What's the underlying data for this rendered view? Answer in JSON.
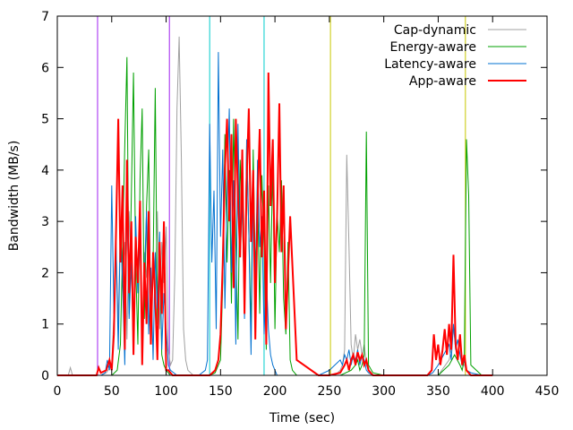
{
  "chart_data": {
    "type": "line",
    "xlabel": "Time (sec)",
    "ylabel": "Bandwidth (MB/s)",
    "xlim": [
      0,
      450
    ],
    "ylim": [
      0,
      7
    ],
    "xticks": [
      0,
      50,
      100,
      150,
      200,
      250,
      300,
      350,
      400,
      450
    ],
    "yticks": [
      0,
      1,
      2,
      3,
      4,
      5,
      6,
      7
    ],
    "grid": false,
    "legend_position": "top-right",
    "vertical_lines": [
      {
        "x": 37,
        "color": "#a020f0"
      },
      {
        "x": 103,
        "color": "#a020f0"
      },
      {
        "x": 140,
        "color": "#00cccc"
      },
      {
        "x": 190,
        "color": "#00cccc"
      },
      {
        "x": 251,
        "color": "#c8c800"
      },
      {
        "x": 375,
        "color": "#c8c800"
      }
    ],
    "series": [
      {
        "name": "Cap-dynamic",
        "color": "#a0a0a0",
        "width": 1,
        "x": [
          0,
          10,
          12,
          14,
          20,
          30,
          40,
          45,
          50,
          52,
          54,
          56,
          58,
          60,
          62,
          64,
          66,
          68,
          70,
          72,
          74,
          76,
          78,
          80,
          82,
          84,
          86,
          88,
          90,
          92,
          94,
          96,
          98,
          100,
          102,
          104,
          106,
          108,
          110,
          112,
          114,
          116,
          118,
          120,
          125,
          130,
          140,
          150,
          200,
          240,
          250,
          255,
          260,
          262,
          264,
          266,
          268,
          270,
          272,
          274,
          276,
          278,
          280,
          282,
          284,
          286,
          290,
          300,
          350,
          360,
          362,
          364,
          366,
          368,
          370,
          372,
          374,
          376,
          380,
          390,
          400
        ],
        "y": [
          0,
          0,
          0.15,
          0,
          0,
          0,
          0,
          0.05,
          0.2,
          1.2,
          2.5,
          1.0,
          3.0,
          1.8,
          2.6,
          0.7,
          3.2,
          2.1,
          0.9,
          2.8,
          1.6,
          3.3,
          0.6,
          2.4,
          1.9,
          3.0,
          0.8,
          2.2,
          1.4,
          3.2,
          0.9,
          2.6,
          1.8,
          2.9,
          0.5,
          0.2,
          0.3,
          2.0,
          5.2,
          6.6,
          4.2,
          0.9,
          0.3,
          0.1,
          0,
          0,
          0,
          0,
          0,
          0,
          0,
          0,
          0.1,
          0.2,
          0.5,
          4.3,
          2.5,
          0.6,
          0.3,
          0.8,
          0.5,
          0.7,
          0.4,
          0.6,
          0.2,
          0.1,
          0,
          0,
          0,
          0.3,
          0.5,
          0.9,
          0.6,
          0.4,
          0.7,
          0.3,
          0.2,
          0.1,
          0,
          0,
          0
        ]
      },
      {
        "name": "Energy-aware",
        "color": "#00a000",
        "width": 1,
        "x": [
          0,
          40,
          50,
          55,
          58,
          60,
          62,
          64,
          66,
          68,
          70,
          72,
          74,
          76,
          78,
          80,
          82,
          84,
          86,
          88,
          90,
          92,
          94,
          96,
          98,
          100,
          104,
          110,
          130,
          140,
          145,
          150,
          152,
          154,
          156,
          158,
          160,
          162,
          164,
          166,
          168,
          170,
          172,
          174,
          176,
          178,
          180,
          182,
          184,
          186,
          188,
          190,
          192,
          194,
          196,
          198,
          200,
          202,
          204,
          206,
          208,
          210,
          212,
          214,
          216,
          220,
          240,
          260,
          270,
          274,
          276,
          278,
          280,
          282,
          284,
          286,
          290,
          300,
          350,
          360,
          365,
          370,
          372,
          374,
          376,
          378,
          380,
          390,
          400
        ],
        "y": [
          0,
          0,
          0,
          0.1,
          0.6,
          2.5,
          4.5,
          6.2,
          1.2,
          3.5,
          5.9,
          2.2,
          0.6,
          3.8,
          5.2,
          1.1,
          3.3,
          4.4,
          0.8,
          2.1,
          5.6,
          1.0,
          2.3,
          0.4,
          0.2,
          0.1,
          0,
          0,
          0,
          0,
          0.05,
          0.3,
          1.8,
          4.7,
          2.2,
          4.0,
          1.4,
          5.0,
          2.6,
          0.7,
          4.2,
          3.1,
          1.5,
          4.5,
          2.8,
          0.9,
          4.4,
          2.0,
          3.6,
          1.2,
          3.9,
          2.5,
          0.5,
          3.7,
          1.8,
          4.2,
          0.9,
          3.2,
          2.4,
          3.8,
          1.5,
          0.8,
          2.6,
          0.3,
          0.1,
          0,
          0,
          0,
          0.1,
          0.2,
          0.3,
          0.1,
          0.2,
          0.4,
          4.75,
          0.2,
          0.05,
          0,
          0,
          0.2,
          0.4,
          0.2,
          0.1,
          0.3,
          4.6,
          3.5,
          0.2,
          0,
          0
        ]
      },
      {
        "name": "Latency-aware",
        "color": "#0070d0",
        "width": 1,
        "x": [
          0,
          40,
          44,
          46,
          48,
          50,
          52,
          54,
          56,
          58,
          60,
          62,
          64,
          66,
          68,
          70,
          72,
          74,
          76,
          78,
          80,
          82,
          84,
          86,
          88,
          90,
          92,
          94,
          96,
          98,
          100,
          102,
          104,
          110,
          130,
          136,
          138,
          140,
          142,
          144,
          146,
          148,
          150,
          152,
          154,
          156,
          158,
          160,
          162,
          164,
          166,
          168,
          170,
          172,
          174,
          176,
          178,
          180,
          182,
          184,
          186,
          188,
          190,
          192,
          194,
          196,
          198,
          200,
          202,
          204,
          210,
          240,
          250,
          255,
          260,
          262,
          264,
          266,
          268,
          270,
          272,
          274,
          276,
          278,
          280,
          282,
          284,
          286,
          290,
          300,
          340,
          345,
          350,
          355,
          360,
          362,
          364,
          366,
          368,
          370,
          372,
          374,
          376,
          380,
          390,
          400
        ],
        "y": [
          0,
          0,
          0.05,
          0.3,
          0.1,
          3.7,
          1.2,
          2.6,
          0.5,
          3.0,
          1.8,
          0.2,
          3.4,
          1.1,
          2.2,
          0.4,
          3.1,
          1.6,
          2.7,
          0.6,
          1.9,
          3.2,
          0.8,
          2.1,
          0.3,
          2.4,
          1.3,
          2.8,
          0.5,
          1.6,
          0.9,
          0.2,
          0.1,
          0,
          0,
          0.1,
          0.3,
          4.9,
          2.2,
          3.6,
          0.9,
          6.3,
          2.7,
          4.4,
          1.3,
          3.5,
          5.2,
          2.0,
          3.8,
          0.6,
          4.9,
          2.3,
          3.4,
          1.1,
          4.6,
          2.8,
          0.4,
          3.9,
          1.7,
          4.2,
          2.5,
          3.1,
          0.8,
          2.0,
          0.9,
          0.4,
          0.2,
          0.1,
          0,
          0,
          0,
          0,
          0.1,
          0.2,
          0.3,
          0.2,
          0.4,
          0.3,
          0.5,
          0.2,
          0.4,
          0.3,
          0.5,
          0.2,
          0.4,
          0.3,
          0.1,
          0.05,
          0,
          0,
          0,
          0.05,
          0.2,
          0.4,
          0.6,
          0.3,
          1.0,
          0.5,
          0.7,
          0.4,
          0.2,
          0.3,
          0.1,
          0.05,
          0,
          0
        ]
      },
      {
        "name": "App-aware",
        "color": "#ff0000",
        "width": 2,
        "x": [
          0,
          30,
          36,
          38,
          40,
          45,
          48,
          50,
          52,
          54,
          56,
          58,
          60,
          62,
          64,
          66,
          68,
          70,
          72,
          74,
          76,
          78,
          80,
          82,
          84,
          86,
          88,
          90,
          92,
          94,
          96,
          98,
          100,
          102,
          104,
          106,
          110,
          130,
          140,
          145,
          148,
          150,
          152,
          154,
          156,
          158,
          160,
          162,
          164,
          166,
          168,
          170,
          172,
          174,
          176,
          178,
          180,
          182,
          184,
          186,
          188,
          190,
          192,
          194,
          196,
          198,
          200,
          202,
          204,
          206,
          208,
          210,
          214,
          220,
          240,
          250,
          260,
          264,
          266,
          268,
          270,
          272,
          274,
          276,
          278,
          280,
          282,
          284,
          286,
          290,
          300,
          340,
          344,
          346,
          348,
          350,
          352,
          354,
          356,
          358,
          360,
          362,
          364,
          366,
          368,
          370,
          372,
          374,
          376,
          380,
          390,
          400
        ],
        "y": [
          0,
          0,
          0,
          0.15,
          0.05,
          0.1,
          0.3,
          0.1,
          0.8,
          2.8,
          5.0,
          2.2,
          3.7,
          0.5,
          4.2,
          1.6,
          3.0,
          0.4,
          2.7,
          1.8,
          3.4,
          0.2,
          2.2,
          1.0,
          3.2,
          0.6,
          2.4,
          1.5,
          0.3,
          2.6,
          1.2,
          3.0,
          0.1,
          0.1,
          0.05,
          0,
          0,
          0,
          0,
          0.1,
          0.3,
          0.8,
          2.2,
          4.0,
          5.0,
          3.0,
          4.7,
          1.7,
          5.0,
          3.5,
          2.3,
          4.4,
          1.2,
          3.8,
          5.2,
          2.6,
          4.0,
          0.7,
          3.4,
          4.8,
          2.3,
          3.6,
          0.6,
          5.9,
          3.3,
          4.6,
          1.8,
          3.1,
          5.3,
          2.4,
          3.7,
          0.9,
          3.1,
          0.3,
          0,
          0,
          0.05,
          0.2,
          0.3,
          0.1,
          0.3,
          0.4,
          0.2,
          0.45,
          0.3,
          0.4,
          0.2,
          0.3,
          0.1,
          0,
          0,
          0,
          0.1,
          0.8,
          0.3,
          0.6,
          0.2,
          0.5,
          0.9,
          0.4,
          1.0,
          0.5,
          2.35,
          0.6,
          0.3,
          0.8,
          0.2,
          0.4,
          0.1,
          0,
          0,
          0
        ]
      }
    ]
  }
}
